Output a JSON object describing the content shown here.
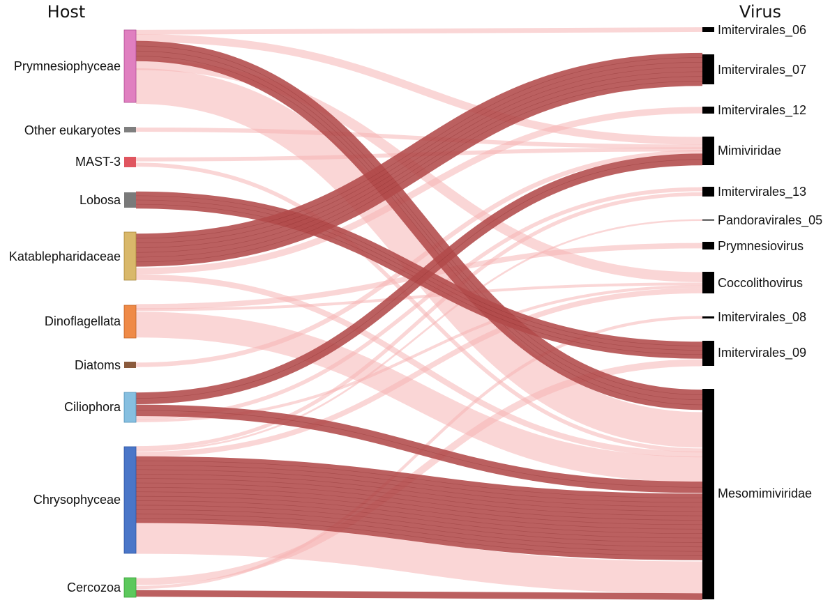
{
  "titles": {
    "host": "Host",
    "virus": "Virus"
  },
  "hosts": [
    {
      "id": "prym",
      "label": "Prymnesiophyceae",
      "color": "#e07fc0"
    },
    {
      "id": "other",
      "label": "Other eukaryotes",
      "color": "#7f7f7f"
    },
    {
      "id": "mast",
      "label": "MAST-3",
      "color": "#e0555f"
    },
    {
      "id": "lob",
      "label": "Lobosa",
      "color": "#7a7a7a"
    },
    {
      "id": "kat",
      "label": "Katablepharidaceae",
      "color": "#d9b86a"
    },
    {
      "id": "dino",
      "label": "Dinoflagellata",
      "color": "#ef8a47"
    },
    {
      "id": "diat",
      "label": "Diatoms",
      "color": "#8b5a3c"
    },
    {
      "id": "cil",
      "label": "Ciliophora",
      "color": "#86bfe0"
    },
    {
      "id": "chry",
      "label": "Chrysophyceae",
      "color": "#4a76c8"
    },
    {
      "id": "cerc",
      "label": "Cercozoa",
      "color": "#5cc85c"
    }
  ],
  "viruses": [
    {
      "id": "i06",
      "label": "Imitervirales_06"
    },
    {
      "id": "i07",
      "label": "Imitervirales_07"
    },
    {
      "id": "i12",
      "label": "Imitervirales_12"
    },
    {
      "id": "mimi",
      "label": "Mimiviridae"
    },
    {
      "id": "i13",
      "label": "Imitervirales_13"
    },
    {
      "id": "p05",
      "label": "Pandoravirales_05"
    },
    {
      "id": "prv",
      "label": "Prymnesiovirus"
    },
    {
      "id": "coc",
      "label": "Coccolithovirus"
    },
    {
      "id": "i08",
      "label": "Imitervirales_08"
    },
    {
      "id": "i09",
      "label": "Imitervirales_09"
    },
    {
      "id": "meso",
      "label": "Mesomimiviridae"
    }
  ],
  "flows": [
    {
      "source": "prym",
      "target": "i06",
      "value": 2,
      "strong": false
    },
    {
      "source": "prym",
      "target": "mimi",
      "value": 3,
      "strong": false
    },
    {
      "source": "prym",
      "target": "meso",
      "value": 8,
      "strong": true
    },
    {
      "source": "prym",
      "target": "coc",
      "value": 4,
      "strong": false
    },
    {
      "source": "prym",
      "target": "meso",
      "value": 14,
      "strong": false
    },
    {
      "source": "other",
      "target": "mimi",
      "value": 1,
      "strong": false
    },
    {
      "source": "mast",
      "target": "mimi",
      "value": 1,
      "strong": false
    },
    {
      "source": "mast",
      "target": "meso",
      "value": 1,
      "strong": false
    },
    {
      "source": "lob",
      "target": "i09",
      "value": 6,
      "strong": true
    },
    {
      "source": "kat",
      "target": "i07",
      "value": 12,
      "strong": true
    },
    {
      "source": "kat",
      "target": "i12",
      "value": 2,
      "strong": false
    },
    {
      "source": "kat",
      "target": "meso",
      "value": 2,
      "strong": false
    },
    {
      "source": "dino",
      "target": "prv",
      "value": 1,
      "strong": false
    },
    {
      "source": "dino",
      "target": "coc",
      "value": 1,
      "strong": false
    },
    {
      "source": "dino",
      "target": "meso",
      "value": 9,
      "strong": false
    },
    {
      "source": "diat",
      "target": "mimi",
      "value": 1,
      "strong": false
    },
    {
      "source": "cil",
      "target": "mimi",
      "value": 4,
      "strong": true
    },
    {
      "source": "cil",
      "target": "meso",
      "value": 4,
      "strong": true
    },
    {
      "source": "cil",
      "target": "i13",
      "value": 1,
      "strong": false
    },
    {
      "source": "cil",
      "target": "coc",
      "value": 1,
      "strong": false
    },
    {
      "source": "chry",
      "target": "i13",
      "value": 1,
      "strong": false
    },
    {
      "source": "chry",
      "target": "p05",
      "value": 1,
      "strong": false
    },
    {
      "source": "chry",
      "target": "coc",
      "value": 2,
      "strong": false
    },
    {
      "source": "chry",
      "target": "meso",
      "value": 25,
      "strong": true
    },
    {
      "source": "chry",
      "target": "meso",
      "value": 12,
      "strong": false
    },
    {
      "source": "cerc",
      "target": "i09",
      "value": 2,
      "strong": false
    },
    {
      "source": "cerc",
      "target": "i08",
      "value": 1,
      "strong": false
    },
    {
      "source": "cerc",
      "target": "meso",
      "value": 2,
      "strong": true
    }
  ]
}
